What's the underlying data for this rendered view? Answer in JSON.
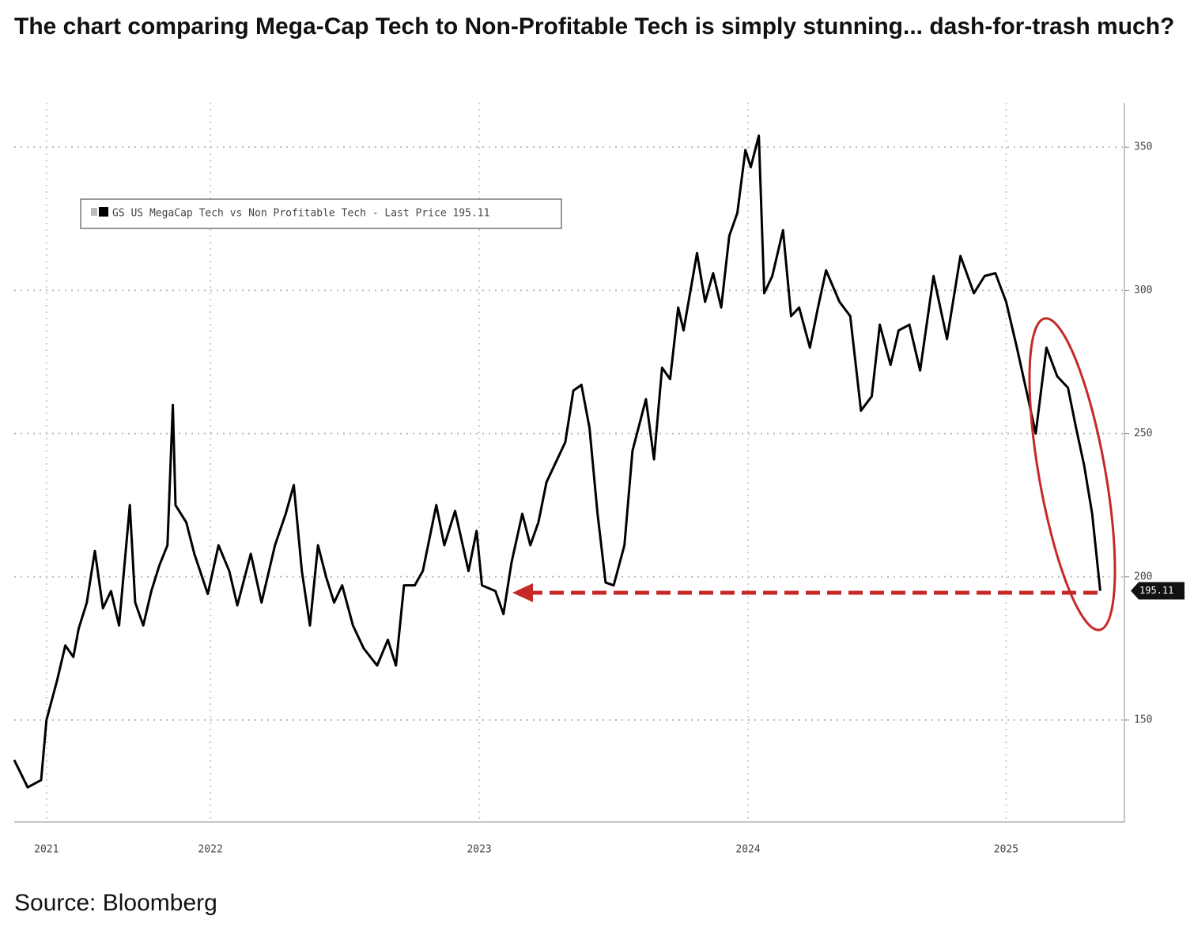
{
  "headline": "The chart comparing Mega-Cap Tech to Non-Profitable Tech is simply stunning... dash-for-trash much?",
  "source": "Source: Bloomberg",
  "chart_data": {
    "type": "line",
    "x": [
      2021.77,
      2021.82,
      2021.87,
      2021.89,
      2021.93,
      2021.96,
      2021.99,
      2022.01,
      2022.04,
      2022.07,
      2022.1,
      2022.13,
      2022.16,
      2022.2,
      2022.22,
      2022.25,
      2022.28,
      2022.31,
      2022.34,
      2022.36,
      2022.37,
      2022.41,
      2022.44,
      2022.49,
      2022.53,
      2022.57,
      2022.6,
      2022.65,
      2022.69,
      2022.74,
      2022.78,
      2022.81,
      2022.84,
      2022.87,
      2022.9,
      2022.93,
      2022.96,
      2022.99,
      2023.03,
      2023.07,
      2023.12,
      2023.16,
      2023.19,
      2023.22,
      2023.26,
      2023.29,
      2023.34,
      2023.37,
      2023.41,
      2023.46,
      2023.49,
      2023.51,
      2023.56,
      2023.59,
      2023.62,
      2023.66,
      2023.69,
      2023.72,
      2023.75,
      2023.78,
      2023.82,
      2023.85,
      2023.88,
      2023.91,
      2023.94,
      2023.97,
      2024.0,
      2024.04,
      2024.07,
      2024.12,
      2024.15,
      2024.18,
      2024.21,
      2024.24,
      2024.26,
      2024.31,
      2024.34,
      2024.37,
      2024.4,
      2024.43,
      2024.46,
      2024.49,
      2024.51,
      2024.54,
      2024.56,
      2024.59,
      2024.63,
      2024.66,
      2024.69,
      2024.73,
      2024.76,
      2024.79,
      2024.84,
      2024.88,
      2024.92,
      2024.96,
      2024.99,
      2025.03,
      2025.06,
      2025.1,
      2025.14,
      2025.19,
      2025.24,
      2025.29,
      2025.34,
      2025.38,
      2025.42,
      2025.46,
      2025.5,
      2025.54,
      2025.57,
      2025.61,
      2025.65,
      2025.69,
      2025.72,
      2025.75,
      2025.78,
      2025.81
    ],
    "series": [
      {
        "name": "GS US MegaCap Tech vs Non Profitable Tech - Last Price 195.11",
        "color": "#000000",
        "values": [
          136,
          126.5,
          129,
          150,
          164,
          176,
          172,
          182,
          191,
          209,
          189,
          195,
          183,
          225,
          191,
          183,
          195,
          204,
          211,
          260,
          225,
          219,
          208,
          194,
          211,
          202,
          190,
          208,
          191,
          211,
          222,
          232,
          202,
          183,
          211,
          200,
          191,
          197,
          183,
          175,
          169,
          178,
          169,
          197,
          197,
          202,
          225,
          211,
          223,
          202,
          216,
          197,
          195,
          187,
          205,
          222,
          211,
          219,
          233,
          239,
          247,
          265,
          267,
          252,
          222,
          198,
          197,
          211,
          244,
          262,
          241,
          273,
          269,
          294,
          286,
          313,
          296,
          306,
          294,
          319,
          327,
          349,
          343,
          354,
          299,
          305,
          321,
          291,
          294,
          280,
          294,
          307,
          296,
          291,
          258,
          263,
          288,
          274,
          286,
          288,
          272,
          305,
          283,
          312,
          299,
          305,
          306,
          296,
          280,
          263,
          250,
          280,
          270,
          266,
          252,
          239,
          222,
          195.11
        ]
      }
    ],
    "xlim": [
      2021.77,
      2025.9
    ],
    "xticks": [
      {
        "value": 2021.89,
        "label": "2021"
      },
      {
        "value": 2022.5,
        "label": "2022"
      },
      {
        "value": 2023.5,
        "label": "2023"
      },
      {
        "value": 2024.5,
        "label": "2024"
      },
      {
        "value": 2025.46,
        "label": "2025"
      }
    ],
    "ylim": [
      114.4,
      365.5
    ],
    "yticks": [
      150,
      200,
      250,
      300,
      350
    ],
    "grid": true,
    "legend": "upper left"
  }
}
